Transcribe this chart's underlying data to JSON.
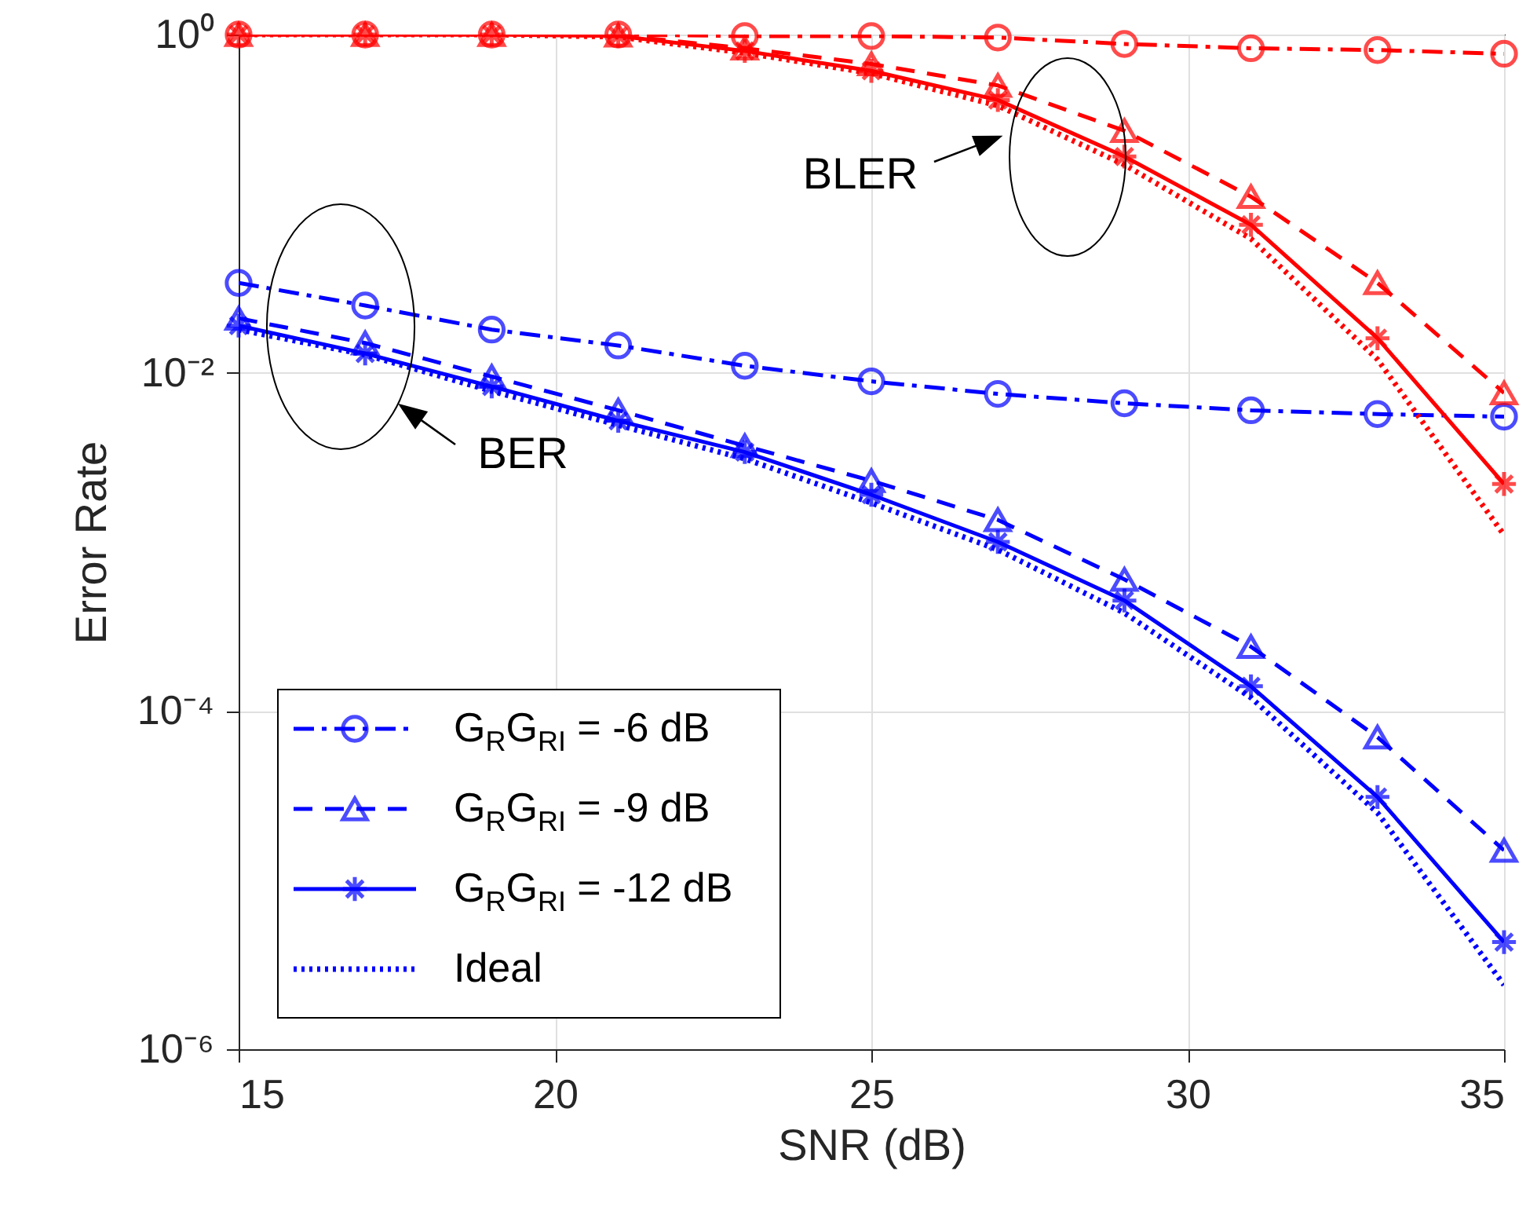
{
  "chart_data": {
    "type": "line",
    "xlabel": "SNR (dB)",
    "ylabel": "Error Rate",
    "x": [
      15,
      17,
      19,
      21,
      23,
      25,
      27,
      29,
      31,
      33,
      35
    ],
    "xlim": [
      15,
      35
    ],
    "xticks": [
      15,
      20,
      25,
      30,
      35
    ],
    "ylim": [
      1e-06,
      1
    ],
    "log": true,
    "yticks": [
      {
        "value": 1e-06,
        "label": "10⁻⁶"
      },
      {
        "value": 0.0001,
        "label": "10⁻⁴"
      },
      {
        "value": 0.01,
        "label": "10⁻²"
      },
      {
        "value": 1,
        "label": "10⁰"
      }
    ],
    "grid": true,
    "legend": "bottom left",
    "series": [
      {
        "name": "G$_{R}$G$_{RI}$ = -6 dB",
        "color": "#0000ff",
        "marker": "circle",
        "line_style": "dashdot",
        "values": [
          0.034,
          0.025,
          0.018,
          0.0145,
          0.011,
          0.0089,
          0.0075,
          0.0066,
          0.006,
          0.0057,
          0.0055
        ]
      },
      {
        "name": "G$_{R}$G$_{RI}$ = -9 dB",
        "color": "#0000ff",
        "marker": "triangle",
        "line_style": "dashed",
        "values": [
          0.021,
          0.015,
          0.0095,
          0.006,
          0.0037,
          0.0023,
          0.00135,
          0.0006,
          0.00024,
          7e-05,
          1.5e-05
        ]
      },
      {
        "name": "G$_{R}$G$_{RI}$ = -12 dB",
        "color": "#0000ff",
        "marker": "cross",
        "line_style": "solid",
        "values": [
          0.019,
          0.013,
          0.0083,
          0.0052,
          0.0034,
          0.0019,
          0.001,
          0.00045,
          0.00014,
          3.1e-05,
          4.3e-06
        ]
      },
      {
        "name": "Ideal",
        "color": "#0000ff",
        "marker": "none",
        "line_style": "dotted",
        "values": [
          0.018,
          0.0128,
          0.0078,
          0.0049,
          0.0031,
          0.0017,
          0.0009,
          0.00038,
          0.00012,
          2.5e-05,
          2.4e-06
        ]
      },
      {
        "color": "#ff0000",
        "marker": "circle",
        "line_style": "dashdot",
        "values": [
          1,
          1,
          1,
          1,
          0.98,
          0.98,
          0.96,
          0.88,
          0.83,
          0.81,
          0.77
        ]
      },
      {
        "color": "#ff0000",
        "marker": "triangle",
        "line_style": "dashed",
        "values": [
          1,
          1,
          1,
          0.99,
          0.83,
          0.67,
          0.5,
          0.27,
          0.11,
          0.034,
          0.0076
        ]
      },
      {
        "color": "#ff0000",
        "marker": "cross",
        "line_style": "solid",
        "values": [
          1,
          1,
          1,
          0.98,
          0.8,
          0.61,
          0.41,
          0.19,
          0.075,
          0.016,
          0.0022
        ]
      },
      {
        "color": "#ff0000",
        "marker": "none",
        "line_style": "dotted",
        "values": [
          1,
          1,
          1,
          0.97,
          0.78,
          0.59,
          0.38,
          0.17,
          0.062,
          0.012,
          0.0011
        ]
      }
    ],
    "annotations": [
      "BLER",
      "BER"
    ]
  }
}
